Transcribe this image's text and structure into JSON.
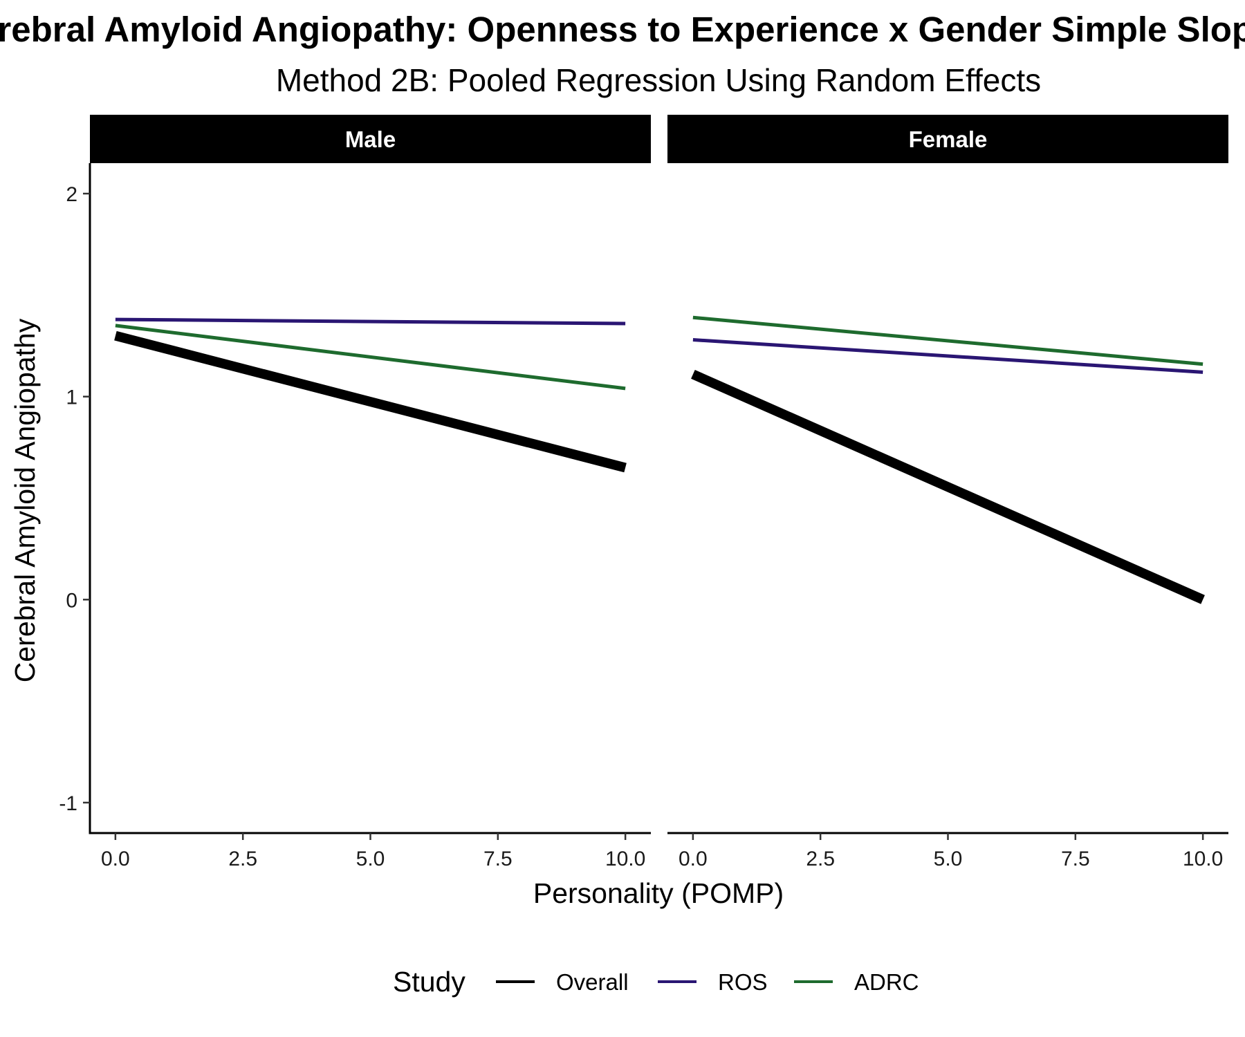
{
  "chart_data": {
    "type": "line",
    "title": "Cerebral Amyloid Angiopathy: Openness to Experience x Gender Simple Slopes",
    "subtitle": "Method 2B: Pooled Regression Using Random Effects",
    "xlabel": "Personality (POMP)",
    "ylabel": "Cerebral Amyloid Angiopathy",
    "xlim": [
      -0.5,
      10.5
    ],
    "ylim": [
      -1.15,
      2.15
    ],
    "x_ticks": [
      0,
      2.5,
      5,
      7.5,
      10
    ],
    "x_tick_labels": [
      "0.0",
      "2.5",
      "5.0",
      "7.5",
      "10.0"
    ],
    "y_ticks": [
      2,
      1,
      0,
      -1
    ],
    "y_tick_labels": [
      "2",
      "1",
      "0",
      "-1"
    ],
    "grid": false,
    "legend_title": "Study",
    "legend_position": "bottom",
    "legend": [
      {
        "label": "Overall",
        "color": "#000000"
      },
      {
        "label": "ROS",
        "color": "#2a1673"
      },
      {
        "label": "ADRC",
        "color": "#1e6b2e"
      }
    ],
    "facets": [
      {
        "name": "Male",
        "series": [
          {
            "name": "ADRC",
            "color": "#1e6b2e",
            "x": [
              0,
              10
            ],
            "y": [
              1.35,
              1.04
            ]
          },
          {
            "name": "ROS",
            "color": "#2a1673",
            "x": [
              0,
              10
            ],
            "y": [
              1.38,
              1.36
            ]
          },
          {
            "name": "Overall",
            "color": "#000000",
            "x": [
              0,
              10
            ],
            "y": [
              1.3,
              0.65
            ]
          }
        ]
      },
      {
        "name": "Female",
        "series": [
          {
            "name": "ADRC",
            "color": "#1e6b2e",
            "x": [
              0,
              10
            ],
            "y": [
              1.39,
              1.16
            ]
          },
          {
            "name": "ROS",
            "color": "#2a1673",
            "x": [
              0,
              10
            ],
            "y": [
              1.28,
              1.12
            ]
          },
          {
            "name": "Overall",
            "color": "#000000",
            "x": [
              0,
              10
            ],
            "y": [
              1.11,
              0.0
            ]
          }
        ]
      }
    ]
  }
}
